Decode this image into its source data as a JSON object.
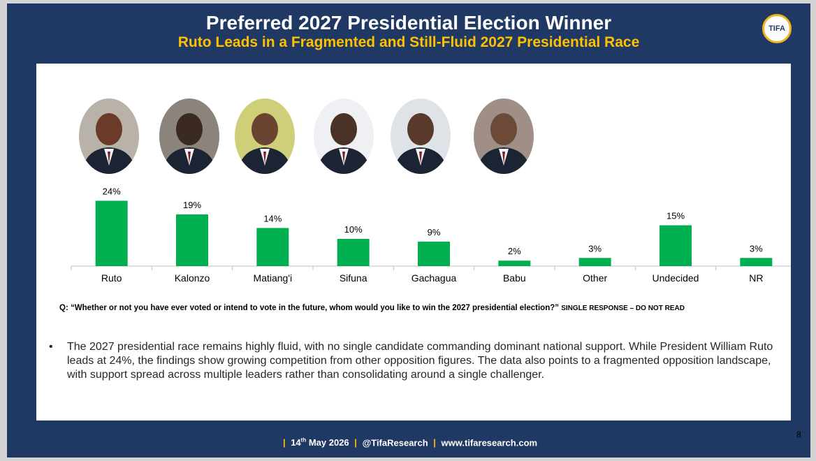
{
  "header": {
    "title": "Preferred 2027 Presidential Election Winner",
    "subtitle": "Ruto Leads in a Fragmented and Still-Fluid 2027 Presidential Race",
    "logo_text": "TIFA"
  },
  "chart_data": {
    "type": "bar",
    "categories": [
      "Ruto",
      "Kalonzo",
      "Matiang'i",
      "Sifuna",
      "Gachagua",
      "Babu",
      "Other",
      "Undecided",
      "NR"
    ],
    "values": [
      24,
      19,
      14,
      10,
      9,
      2,
      3,
      15,
      3
    ],
    "data_labels": [
      "24%",
      "19%",
      "14%",
      "10%",
      "9%",
      "2%",
      "3%",
      "15%",
      "3%"
    ],
    "value_unit": "%",
    "bar_color": "#00b050",
    "ylim": [
      0,
      25
    ],
    "grid": false,
    "legend": false,
    "title": "",
    "xlabel": "",
    "ylabel": ""
  },
  "avatars": [
    {
      "icon": "candidate-portrait-icon",
      "color": "#6b3b2a",
      "bg": "#b9b2a8"
    },
    {
      "icon": "candidate-portrait-icon",
      "color": "#3a2a22",
      "bg": "#8a847c"
    },
    {
      "icon": "candidate-portrait-icon",
      "color": "#6a4430",
      "bg": "#cfcf7a"
    },
    {
      "icon": "candidate-portrait-icon",
      "color": "#4a3226",
      "bg": "#eef0f4"
    },
    {
      "icon": "candidate-portrait-icon",
      "color": "#5a3a2a",
      "bg": "#dfe2e6"
    },
    {
      "icon": "candidate-portrait-icon",
      "color": "#6b4a38",
      "bg": "#9f8f86"
    }
  ],
  "question": {
    "text": "Q: “Whether or not you have ever voted or intend to vote in the future, whom would you like to win the 2027 presidential election?”",
    "instruction": "SINGLE RESPONSE – DO NOT READ"
  },
  "bullet": {
    "marker": "•",
    "text": "The 2027 presidential race remains highly fluid, with no single candidate commanding dominant national support. While President William Ruto leads at 24%, the findings show growing competition from other opposition figures. The data also points to a fragmented opposition landscape, with support spread across multiple leaders rather than consolidating around a single challenger."
  },
  "footer": {
    "date_day": "14",
    "date_suffix": "th",
    "date_rest": " May 2026",
    "handle": "@TifaResearch",
    "website": "www.tifaresearch.com",
    "separator": "|"
  },
  "page_number": "8"
}
